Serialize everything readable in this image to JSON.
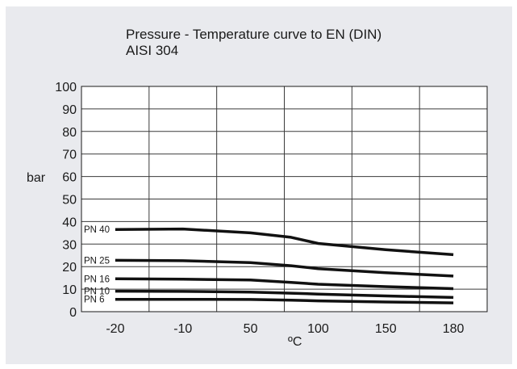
{
  "chart_data": {
    "type": "line",
    "title": "Pressure - Temperature curve to EN (DIN)",
    "subtitle": "AISI 304",
    "xlabel": "ºC",
    "ylabel": "bar",
    "categories": [
      "-20",
      "-10",
      "50",
      "100",
      "150",
      "180"
    ],
    "ylim": [
      0,
      100
    ],
    "yticks": [
      0,
      10,
      20,
      30,
      40,
      50,
      60,
      70,
      80,
      90,
      100
    ],
    "grid": true,
    "legend": "inline labels at left end of each line",
    "series": [
      {
        "name": "PN 40",
        "points": [
          [
            -20,
            36.5
          ],
          [
            -10,
            36.7
          ],
          [
            50,
            35
          ],
          [
            80,
            33
          ],
          [
            100,
            30.3
          ],
          [
            150,
            27.5
          ],
          [
            180,
            25.3
          ]
        ]
      },
      {
        "name": "PN 25",
        "points": [
          [
            -20,
            22.8
          ],
          [
            -10,
            22.6
          ],
          [
            50,
            21.8
          ],
          [
            80,
            20.4
          ],
          [
            100,
            19.1
          ],
          [
            150,
            17.3
          ],
          [
            180,
            15.8
          ]
        ]
      },
      {
        "name": "PN 16",
        "points": [
          [
            -20,
            14.6
          ],
          [
            -10,
            14.4
          ],
          [
            50,
            14.1
          ],
          [
            80,
            13
          ],
          [
            100,
            12.2
          ],
          [
            150,
            11.1
          ],
          [
            180,
            10.2
          ]
        ]
      },
      {
        "name": "PN 10",
        "points": [
          [
            -20,
            9.1
          ],
          [
            -10,
            9
          ],
          [
            50,
            8.7
          ],
          [
            80,
            8.2
          ],
          [
            100,
            7.8
          ],
          [
            150,
            7
          ],
          [
            180,
            6.3
          ]
        ]
      },
      {
        "name": "PN 6",
        "points": [
          [
            -20,
            5.5
          ],
          [
            -10,
            5.5
          ],
          [
            50,
            5.4
          ],
          [
            80,
            5.1
          ],
          [
            100,
            4.8
          ],
          [
            150,
            4.3
          ],
          [
            180,
            3.9
          ]
        ]
      }
    ],
    "colors": {
      "panel_bg": "#e9eaee",
      "plot_bg": "#ffffff",
      "line": "#111111",
      "grid": "#3a3a3a"
    }
  }
}
